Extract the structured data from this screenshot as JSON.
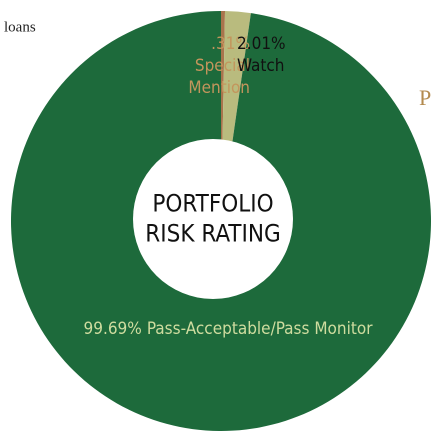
{
  "chart_data": {
    "type": "pie",
    "title": "PORTFOLIO RISK RATING",
    "annotations": [
      "loans",
      "P"
    ],
    "categories": [
      "Special Mention",
      "Watch",
      "Pass-Acceptable/Pass Monitor"
    ],
    "values": [
      0.31,
      2.01,
      99.69
    ],
    "value_labels": [
      ".31%",
      "2.01%",
      "99.69%"
    ],
    "colors": [
      "#a8744c",
      "#b9bb7e",
      "#1d6a3b"
    ]
  }
}
